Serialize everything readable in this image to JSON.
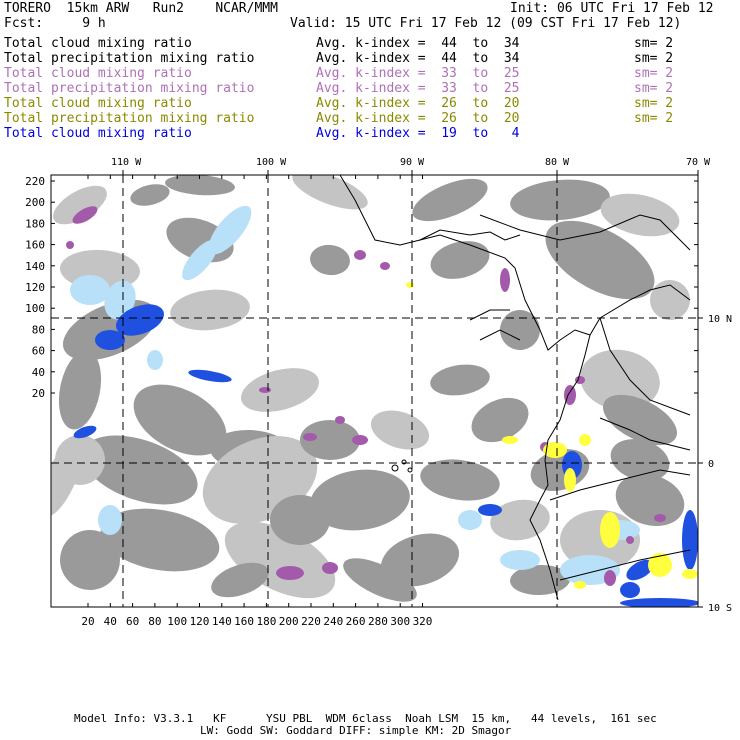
{
  "header": {
    "left1": "TORERO  15km ARW   Run2    NCAR/MMM",
    "right1": "Init: 06 UTC Fri 17 Feb 12",
    "left2": "Fcst:     9 h",
    "right2": "Valid: 15 UTC Fri 17 Feb 12 (09 CST Fri 17 Feb 12)"
  },
  "legend": [
    {
      "field": "Total cloud mixing ratio",
      "idx": "Avg. k-index =  44  to  34",
      "sm": "sm= 2",
      "color": "#000000"
    },
    {
      "field": "Total precipitation mixing ratio",
      "idx": "Avg. k-index =  44  to  34",
      "sm": "sm= 2",
      "color": "#000000"
    },
    {
      "field": "Total cloud mixing ratio",
      "idx": "Avg. k-index =  33  to  25",
      "sm": "sm= 2",
      "color": "#b070b8"
    },
    {
      "field": "Total precipitation mixing ratio",
      "idx": "Avg. k-index =  33  to  25",
      "sm": "sm= 2",
      "color": "#b070b8"
    },
    {
      "field": "Total cloud mixing ratio",
      "idx": "Avg. k-index =  26  to  20",
      "sm": "sm= 2",
      "color": "#8a8a00"
    },
    {
      "field": "Total precipitation mixing ratio",
      "idx": "Avg. k-index =  26  to  20",
      "sm": "sm= 2",
      "color": "#8a8a00"
    },
    {
      "field": "Total cloud mixing ratio",
      "idx": "Avg. k-index =  19  to   4",
      "sm": "",
      "color": "#0000e0"
    }
  ],
  "map": {
    "top_lon_labels": [
      "110 W",
      "100 W",
      "90 W",
      "80 W",
      "70 W"
    ],
    "right_lat_labels": [
      "10 N",
      "0",
      "10 S"
    ],
    "y_ticks": [
      "220",
      "200",
      "180",
      "160",
      "140",
      "120",
      "100",
      "80",
      "60",
      "40",
      "20"
    ],
    "x_ticks": [
      "20",
      "40",
      "60",
      "80",
      "100",
      "120",
      "140",
      "160",
      "180",
      "200",
      "220",
      "240",
      "260",
      "280",
      "300",
      "320"
    ],
    "colors": {
      "cloud_gray": "#9a9a9a",
      "cloud_lightgray": "#c4c4c4",
      "purple": "#a45aaa",
      "yellow": "#ffff40",
      "blue": "#2050e0",
      "lightblue": "#b8e0f8"
    }
  },
  "footer": {
    "line1": "Model Info: V3.3.1   KF      YSU PBL  WDM 6class  Noah LSM  15 km,   44 levels,  161 sec",
    "line2": "LW: Godd SW: Goddard DIFF: simple KM: 2D Smagor"
  }
}
